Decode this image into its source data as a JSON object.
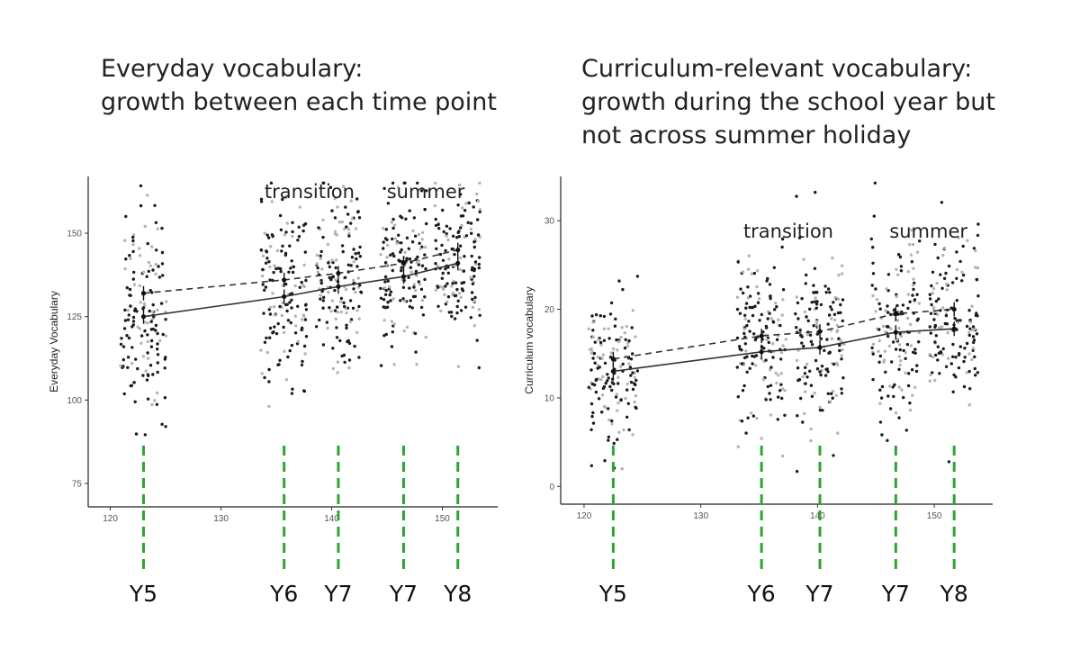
{
  "chart_data": [
    {
      "type": "scatter",
      "title": [
        "Everyday vocabulary:",
        "growth between each time point"
      ],
      "xlabel": "",
      "ylabel": "Everyday Vocabulary",
      "xlim": [
        118,
        155
      ],
      "ylim": [
        68,
        167
      ],
      "xticks": [
        120,
        130,
        140,
        150
      ],
      "yticks": [
        75,
        100,
        125,
        150
      ],
      "grid": false,
      "annotations": [
        {
          "text": "transition",
          "x": 138
        },
        {
          "text": "summer",
          "x": 148.5
        }
      ],
      "markers": [
        {
          "label": "Y5",
          "x": 123
        },
        {
          "label": "Y6",
          "x": 135.7
        },
        {
          "label": "Y7",
          "x": 140.6
        },
        {
          "label": "Y7",
          "x": 146.5
        },
        {
          "label": "Y8",
          "x": 151.4
        }
      ],
      "clusters": [
        {
          "x_center": 123,
          "y_mean": 126,
          "y_sd": 15
        },
        {
          "x_center": 135.7,
          "y_mean": 132,
          "y_sd": 14
        },
        {
          "x_center": 140.6,
          "y_mean": 135,
          "y_sd": 14
        },
        {
          "x_center": 146.5,
          "y_mean": 138,
          "y_sd": 13
        },
        {
          "x_center": 151.4,
          "y_mean": 143,
          "y_sd": 12
        }
      ],
      "series": [
        {
          "style": "solid",
          "x": [
            123,
            135.7,
            140.6,
            146.5,
            151.4
          ],
          "y": [
            125,
            131,
            134,
            137,
            141
          ]
        },
        {
          "style": "dashed",
          "x": [
            123,
            135.7,
            140.6,
            146.5,
            151.4
          ],
          "y": [
            132,
            136,
            138,
            141,
            145
          ]
        }
      ]
    },
    {
      "type": "scatter",
      "title": [
        "Curriculum-relevant vocabulary:",
        "growth during the school year but",
        "not across summer holiday"
      ],
      "xlabel": "",
      "ylabel": "Curriculum vocabulary",
      "xlim": [
        118,
        155
      ],
      "ylim": [
        -2,
        35
      ],
      "xticks": [
        120,
        130,
        140,
        150
      ],
      "yticks": [
        0,
        10,
        20,
        30
      ],
      "grid": false,
      "annotations": [
        {
          "text": "transition",
          "x": 137.5
        },
        {
          "text": "summer",
          "x": 149.5
        }
      ],
      "markers": [
        {
          "label": "Y5",
          "x": 122.5
        },
        {
          "label": "Y6",
          "x": 135.2
        },
        {
          "label": "Y7",
          "x": 140.2
        },
        {
          "label": "Y7",
          "x": 146.7
        },
        {
          "label": "Y8",
          "x": 151.7
        }
      ],
      "clusters": [
        {
          "x_center": 122.5,
          "y_mean": 13,
          "y_sd": 4.5
        },
        {
          "x_center": 135.2,
          "y_mean": 16,
          "y_sd": 5
        },
        {
          "x_center": 140.2,
          "y_mean": 16.5,
          "y_sd": 5
        },
        {
          "x_center": 146.7,
          "y_mean": 18,
          "y_sd": 5
        },
        {
          "x_center": 151.7,
          "y_mean": 18.5,
          "y_sd": 5
        }
      ],
      "series": [
        {
          "style": "solid",
          "x": [
            122.5,
            135.2,
            140.2,
            146.7,
            151.7
          ],
          "y": [
            13,
            15.2,
            15.7,
            17.4,
            17.8
          ]
        },
        {
          "style": "dashed",
          "x": [
            122.5,
            135.2,
            140.2,
            146.7,
            151.7
          ],
          "y": [
            14.4,
            17,
            17.5,
            19.5,
            20
          ]
        }
      ]
    }
  ],
  "colors": {
    "dark_points": "#1c1c1c",
    "light_points": "#b4b4b4",
    "marker_lines": "#2ea52e",
    "lines": "#333333"
  }
}
